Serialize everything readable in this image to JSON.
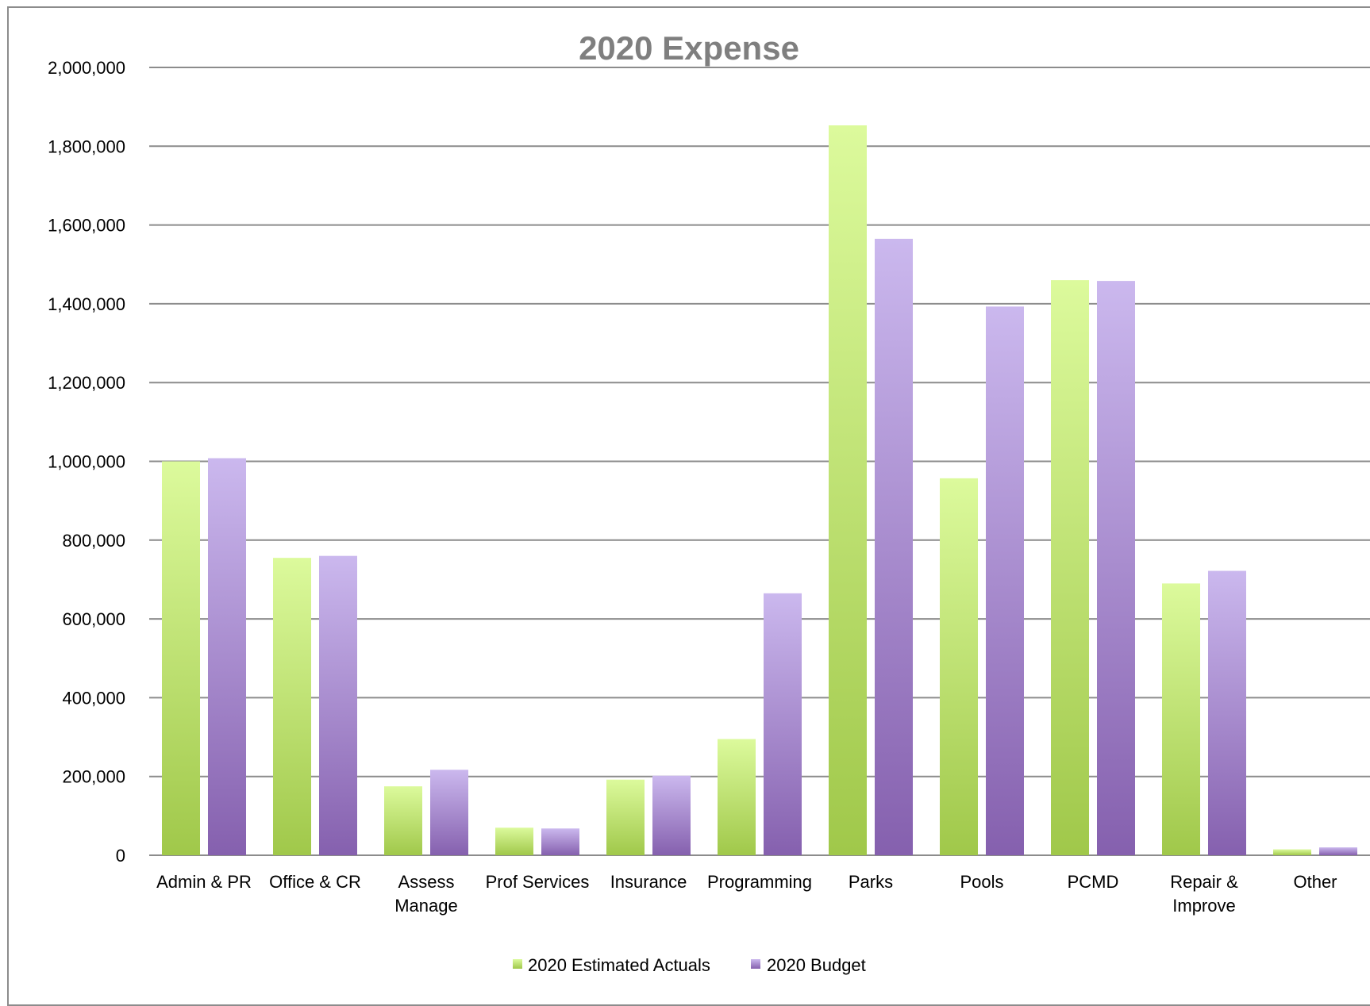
{
  "chart_data": {
    "type": "bar",
    "title": "2020 Expense",
    "xlabel": "",
    "ylabel": "",
    "ylim": [
      0,
      2000000
    ],
    "yticks": [
      "0",
      "200,000",
      "400,000",
      "600,000",
      "800,000",
      "1,000,000",
      "1,200,000",
      "1,400,000",
      "1,600,000",
      "1,800,000",
      "2,000,000"
    ],
    "ytick_values": [
      0,
      200000,
      400000,
      600000,
      800000,
      1000000,
      1200000,
      1400000,
      1600000,
      1800000,
      2000000
    ],
    "grid": true,
    "legend_position": "bottom",
    "categories": [
      [
        "Admin & PR"
      ],
      [
        "Office & CR"
      ],
      [
        "Assess",
        "Manage"
      ],
      [
        "Prof Services"
      ],
      [
        "Insurance"
      ],
      [
        "Programming"
      ],
      [
        "Parks"
      ],
      [
        "Pools"
      ],
      [
        "PCMD"
      ],
      [
        "Repair &",
        "Improve"
      ],
      [
        "Other"
      ]
    ],
    "series": [
      {
        "name": "2020 Estimated Actuals",
        "color_top": "#dcfa9c",
        "color_bottom": "#a0c84a",
        "values": [
          1000000,
          755000,
          175000,
          70000,
          192000,
          295000,
          1853000,
          957000,
          1460000,
          690000,
          15000
        ]
      },
      {
        "name": "2020 Budget",
        "color_top": "#cbb8ee",
        "color_bottom": "#8560ae",
        "values": [
          1008000,
          760000,
          217000,
          68000,
          202000,
          665000,
          1565000,
          1393000,
          1458000,
          722000,
          20000
        ]
      }
    ]
  }
}
